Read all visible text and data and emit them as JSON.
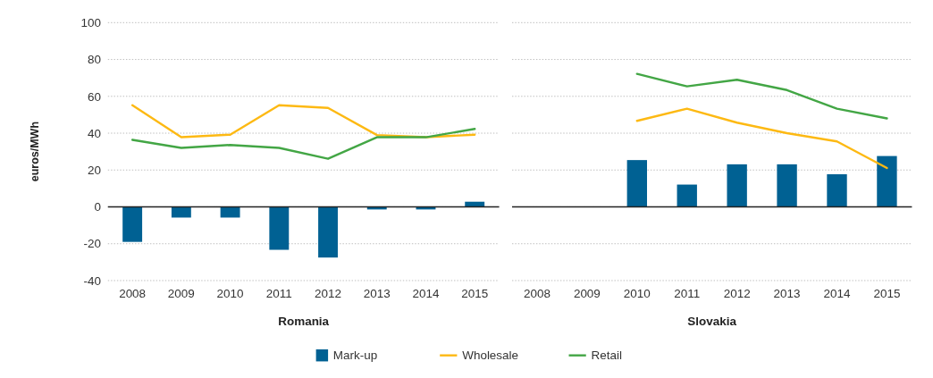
{
  "chart_data": [
    {
      "type": "bar",
      "xlabel": "Romania",
      "ylabel": "euros/MWh",
      "categories": [
        "2008",
        "2009",
        "2010",
        "2011",
        "2012",
        "2013",
        "2014",
        "2015"
      ],
      "ylim": [
        -40,
        100
      ],
      "yticks": [
        -40,
        -20,
        0,
        20,
        40,
        60,
        80,
        100
      ],
      "grid": "y",
      "legend": "bottom",
      "series": [
        {
          "name": "Mark-up",
          "color": "#006193",
          "values": [
            -19,
            -5.8,
            -5.8,
            -23.3,
            -27.5,
            -1.4,
            -1.4,
            2.8
          ]
        },
        {
          "name": "Wholesale",
          "type": "line",
          "color": "#fdb913",
          "values": [
            55.2,
            37.8,
            39.2,
            55.2,
            53.7,
            39,
            37.8,
            39.2
          ]
        },
        {
          "name": "Retail",
          "type": "line",
          "color": "#43a645",
          "values": [
            36.4,
            32,
            33.6,
            32,
            26.1,
            37.8,
            37.8,
            42.3
          ]
        }
      ]
    },
    {
      "type": "bar",
      "xlabel": "Slovakia",
      "categories": [
        "2008",
        "2009",
        "2010",
        "2011",
        "2012",
        "2013",
        "2014",
        "2015"
      ],
      "ylim": [
        -40,
        100
      ],
      "yticks": [
        -40,
        -20,
        0,
        20,
        40,
        60,
        80,
        100
      ],
      "grid": "y",
      "tick_labels": "x",
      "series": [
        {
          "color": "#006193",
          "values": [
            null,
            null,
            25.4,
            12.1,
            23.1,
            23.1,
            17.7,
            27.6
          ]
        },
        {
          "type": "line",
          "color": "#fdb913",
          "values": [
            null,
            null,
            46.7,
            53.3,
            45.7,
            40,
            35.5,
            21.1
          ]
        },
        {
          "type": "line",
          "color": "#43a645",
          "values": [
            null,
            null,
            72.2,
            65.4,
            69,
            63.4,
            53.3,
            48
          ]
        }
      ]
    }
  ]
}
